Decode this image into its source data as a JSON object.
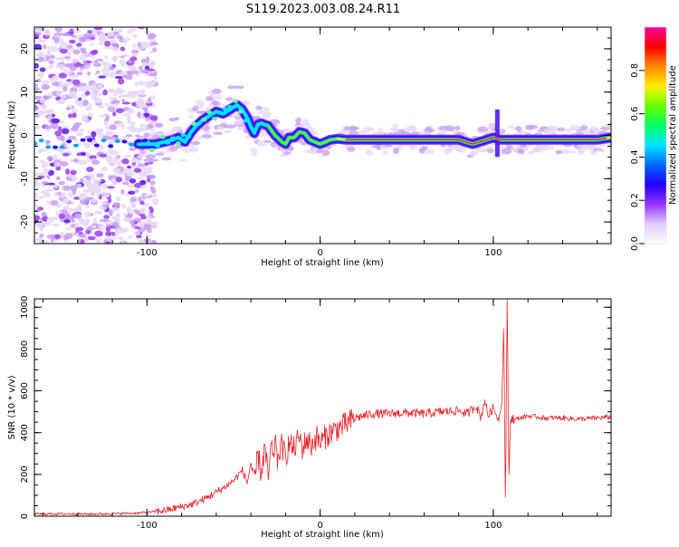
{
  "title": "S119.2023.003.08.24.R11",
  "chart_data": [
    {
      "type": "heatmap",
      "xlabel": "Height of straight line (km)",
      "ylabel": "Frequency (Hz)",
      "xlim": [
        -165,
        168
      ],
      "ylim": [
        -25,
        25
      ],
      "x_ticks": [
        -100,
        0,
        100
      ],
      "y_ticks": [
        -20,
        -10,
        0,
        10,
        20
      ],
      "colorbar": {
        "label": "Normalized spectral amplitude",
        "range": [
          0,
          1
        ],
        "ticks": [
          0.0,
          0.2,
          0.4,
          0.6,
          0.8
        ],
        "colors": [
          "#ffffff",
          "#e0ccf5",
          "#9933ff",
          "#2200ff",
          "#0066ff",
          "#00e5ff",
          "#00ff66",
          "#66ff00",
          "#ffee00",
          "#ff8800",
          "#ff0000",
          "#ff0099"
        ]
      },
      "ridge": {
        "x": [
          -105,
          -100,
          -95,
          -90,
          -85,
          -82,
          -78,
          -75,
          -72,
          -68,
          -64,
          -60,
          -56,
          -52,
          -48,
          -45,
          -42,
          -40,
          -38,
          -36,
          -34,
          -30,
          -26,
          -22,
          -20,
          -18,
          -15,
          -12,
          -9,
          -6,
          -3,
          0,
          3,
          6,
          10,
          15,
          20,
          30,
          40,
          50,
          60,
          70,
          75,
          80,
          84,
          88,
          92,
          96,
          100,
          104,
          108,
          115,
          120,
          130,
          140,
          150,
          160,
          168
        ],
        "y": [
          -2,
          -2,
          -2,
          -1.5,
          -1,
          -0.5,
          -1.5,
          0.5,
          2,
          3.5,
          4.5,
          5.5,
          5,
          6,
          7,
          6,
          4,
          2,
          0.5,
          2.5,
          2.8,
          2.2,
          0,
          -1.5,
          -2,
          -0.5,
          -0.5,
          0.8,
          0.5,
          -1,
          -1.5,
          -2,
          -1.5,
          -1,
          -0.8,
          -1,
          -1,
          -1,
          -1,
          -1,
          -1,
          -1,
          -1,
          -1,
          -1.5,
          -2,
          -1.5,
          -1,
          -0.5,
          -1,
          -1,
          -1,
          -1,
          -1,
          -1,
          -1,
          -1,
          -0.5
        ]
      },
      "noise_region_x": [
        -165,
        -100
      ]
    },
    {
      "type": "line",
      "xlabel": "Height of straight line (km)",
      "ylabel": "SNR (10 * v/v)",
      "xlim": [
        -165,
        168
      ],
      "ylim": [
        0,
        1040
      ],
      "x_ticks": [
        -100,
        0,
        100
      ],
      "y_ticks": [
        0,
        200,
        400,
        600,
        800,
        1000
      ],
      "color": "#e8232a",
      "series": [
        {
          "x": [
            -165,
            -150,
            -135,
            -120,
            -105,
            -95,
            -88,
            -83,
            -80,
            -75,
            -70,
            -65,
            -60,
            -55,
            -50,
            -45,
            -42,
            -40,
            -38,
            -36,
            -34,
            -32,
            -30,
            -28,
            -27,
            -26,
            -25,
            -24,
            -22,
            -20,
            -18,
            -15,
            -12,
            -10,
            -8,
            -5,
            -2,
            0,
            3,
            6,
            10,
            15,
            20,
            25,
            30,
            40,
            50,
            60,
            70,
            80,
            85,
            90,
            93,
            95,
            97,
            100,
            103,
            105,
            106,
            107,
            108,
            109,
            110,
            111,
            112,
            115,
            120,
            130,
            140,
            150,
            160,
            168
          ],
          "y": [
            10,
            12,
            10,
            12,
            15,
            22,
            30,
            40,
            45,
            55,
            70,
            90,
            115,
            140,
            170,
            220,
            160,
            260,
            140,
            300,
            200,
            330,
            180,
            350,
            230,
            410,
            250,
            300,
            340,
            280,
            350,
            320,
            380,
            320,
            370,
            340,
            380,
            350,
            380,
            400,
            420,
            440,
            470,
            480,
            490,
            490,
            495,
            490,
            500,
            505,
            490,
            530,
            470,
            560,
            480,
            520,
            460,
            550,
            950,
            50,
            1020,
            200,
            480,
            470,
            460,
            470,
            480,
            470,
            470,
            465,
            470,
            475
          ]
        }
      ]
    }
  ]
}
